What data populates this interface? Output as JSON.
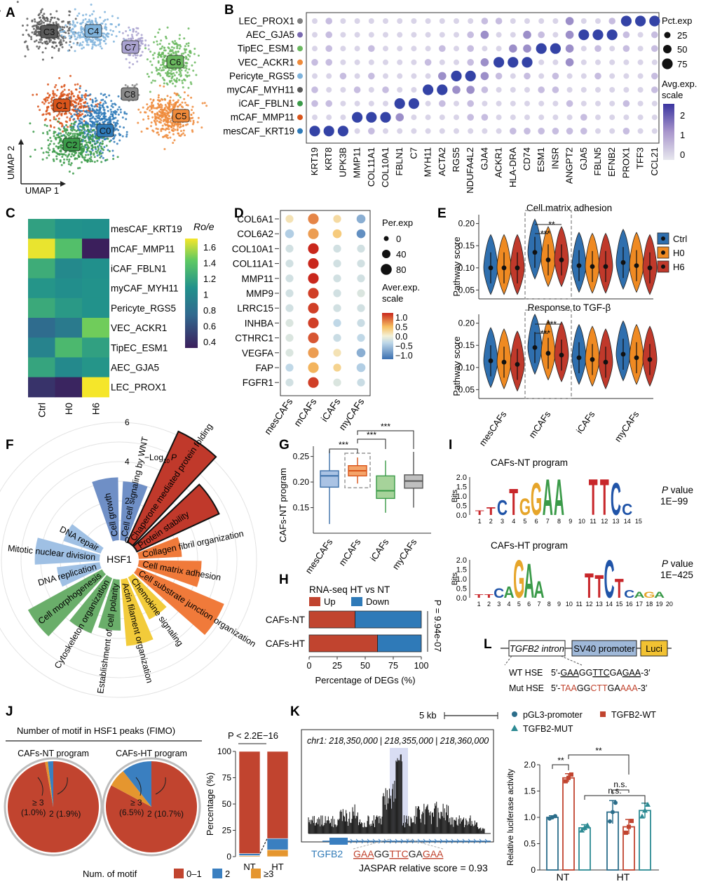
{
  "panels": {
    "A": "A",
    "B": "B",
    "C": "C",
    "D": "D",
    "E": "E",
    "F": "F",
    "G": "G",
    "H": "H",
    "I": "I",
    "J": "J",
    "K": "K",
    "L": "L"
  },
  "panelA": {
    "clusters": [
      {
        "label": "C3",
        "color": "#5a5a5a"
      },
      {
        "label": "C4",
        "color": "#7fb3dc"
      },
      {
        "label": "C7",
        "color": "#a9a2cf"
      },
      {
        "label": "C6",
        "color": "#6ab85f"
      },
      {
        "label": "C1",
        "color": "#d9541a"
      },
      {
        "label": "C8",
        "color": "#8a8a8a"
      },
      {
        "label": "C5",
        "color": "#ef8a3a"
      },
      {
        "label": "C0",
        "color": "#2f7ab8"
      },
      {
        "label": "C2",
        "color": "#3a9a48"
      }
    ],
    "axis_y": "UMAP 2",
    "axis_x": "UMAP 1"
  },
  "panelB": {
    "rows": [
      {
        "name": "LEC_PROX1",
        "color": "#7f7f7f"
      },
      {
        "name": "AEC_GJA5",
        "color": "#7a6ab0"
      },
      {
        "name": "TipEC_ESM1",
        "color": "#6ab85f"
      },
      {
        "name": "VEC_ACKR1",
        "color": "#ef8a3a"
      },
      {
        "name": "Pericyte_RGS5",
        "color": "#7fb3dc"
      },
      {
        "name": "myCAF_MYH11",
        "color": "#5a5a5a"
      },
      {
        "name": "iCAF_FBLN1",
        "color": "#3a9a48"
      },
      {
        "name": "mCAF_MMP11",
        "color": "#d9541a"
      },
      {
        "name": "mesCAF_KRT19",
        "color": "#2f7ab8"
      }
    ],
    "genes": [
      "KRT19",
      "KRT8",
      "UPK3B",
      "MMP11",
      "COL11A1",
      "COL10A1",
      "FBLN1",
      "C7",
      "MYH11",
      "ACTA2",
      "RGS5",
      "NDUFA4L2",
      "GJA4",
      "ACKR1",
      "HLA-DRA",
      "CD74",
      "ESM1",
      "INSR",
      "ANGPT2",
      "GJA5",
      "FBLN5",
      "EFNB2",
      "PROX1",
      "TFF3",
      "CCL21"
    ],
    "legend_pct_title": "Pct.exp",
    "pct_levels": [
      "25",
      "50",
      "75"
    ],
    "legend_avg_title1": "Avg.exp.",
    "legend_avg_title2": "scale",
    "avg_ticks": [
      "2",
      "1",
      "0"
    ]
  },
  "panelC": {
    "rows": [
      "mesCAF_KRT19",
      "mCAF_MMP11",
      "iCAF_FBLN1",
      "myCAF_MYH11",
      "Pericyte_RGS5",
      "VEC_ACKR1",
      "TipEC_ESM1",
      "AEC_GJA5",
      "LEC_PROX1"
    ],
    "cols": [
      "Ctrl",
      "H0",
      "H6"
    ],
    "values": [
      [
        1.12,
        1.03,
        1.02
      ],
      [
        1.72,
        1.32,
        0.3
      ],
      [
        1.2,
        0.95,
        1.02
      ],
      [
        1.05,
        1.0,
        1.03
      ],
      [
        1.18,
        1.08,
        1.03
      ],
      [
        0.7,
        0.82,
        1.43
      ],
      [
        0.9,
        1.28,
        1.12
      ],
      [
        1.15,
        0.95,
        1.05
      ],
      [
        0.4,
        0.33,
        1.75
      ]
    ],
    "legend_title": "Ro/e",
    "ticks": [
      "1.6",
      "1.4",
      "1.2",
      "1",
      "0.8",
      "0.6",
      "0.4"
    ]
  },
  "panelD": {
    "genes": [
      "COL6A1",
      "COL6A2",
      "COL10A1",
      "COL11A1",
      "MMP11",
      "MMP9",
      "LRRC15",
      "INHBA",
      "CTHRC1",
      "VEGFA",
      "FAP",
      "FGFR1"
    ],
    "groups": [
      "mesCAFs",
      "mCAFs",
      "iCAFs",
      "myCAFs"
    ],
    "values": [
      [
        0.3,
        1.0,
        0.4,
        -0.8
      ],
      [
        -0.6,
        0.9,
        0.6,
        -1.0
      ],
      [
        -0.3,
        1.4,
        -0.3,
        -0.3
      ],
      [
        -0.3,
        1.4,
        -0.3,
        -0.3
      ],
      [
        -0.3,
        1.4,
        -0.3,
        -0.3
      ],
      [
        -0.3,
        1.3,
        -0.3,
        -0.2
      ],
      [
        -0.3,
        1.3,
        -0.3,
        -0.3
      ],
      [
        -0.2,
        1.3,
        -0.5,
        -0.4
      ],
      [
        -0.2,
        1.2,
        -0.4,
        -0.5
      ],
      [
        -0.2,
        0.9,
        0.3,
        -0.8
      ],
      [
        -0.5,
        0.8,
        0.5,
        -0.6
      ],
      [
        -0.3,
        1.3,
        -0.2,
        -0.4
      ]
    ],
    "legend_per_title": "Per.exp",
    "per_levels": [
      "0",
      "40",
      "80"
    ],
    "legend_aver_title1": "Aver.exp.",
    "legend_aver_title2": "scale",
    "aver_ticks": [
      "1.0",
      "0.5",
      "0.0",
      "−0.5",
      "−1.0"
    ]
  },
  "panelE": {
    "titles": [
      "Cell matrix adhesion",
      "Response to TGF-β"
    ],
    "ylabel": "Pathway score",
    "yticks": [
      "0.20",
      "0.15",
      "0.10",
      "0.05"
    ],
    "groups": [
      "mesCAFs",
      "mCAFs",
      "iCAFs",
      "myCAFs"
    ],
    "legend": [
      {
        "name": "Ctrl",
        "color": "#2f6fae"
      },
      {
        "name": "H0",
        "color": "#ef8a22"
      },
      {
        "name": "H6",
        "color": "#c0392b"
      }
    ],
    "sig1": "**",
    "sig2": "***",
    "sig3": "***",
    "sig4": "***"
  },
  "panelF": {
    "center": "HSF1",
    "axis_label": "−Log",
    "axis_sub": "10",
    "axis_p": "P",
    "ticks": [
      "6",
      "4",
      "2",
      "0"
    ],
    "bars": [
      {
        "label": "Cell growth",
        "v": 3.2,
        "color": "#6f8fc6"
      },
      {
        "label": "Cell cell signaling by WNT",
        "v": 3.0,
        "color": "#6f8fc6"
      },
      {
        "label": "Chaperone mediated protein folding",
        "v": 6.2,
        "color": "#c0392b"
      },
      {
        "label": "Protein stability",
        "v": 4.6,
        "color": "#c0392b"
      },
      {
        "label": "Collagen fibril organization",
        "v": 2.2,
        "color": "#f07a3a"
      },
      {
        "label": "Cell matrix adhesion",
        "v": 3.2,
        "color": "#f07a3a"
      },
      {
        "label": "Cell substrate junction organization",
        "v": 4.8,
        "color": "#f07a3a"
      },
      {
        "label": "Chemokine signaling",
        "v": 2.4,
        "color": "#f2cb3a"
      },
      {
        "label": "Actin filament organization",
        "v": 3.4,
        "color": "#f2cb3a"
      },
      {
        "label": "Establishment of cell polarity",
        "v": 2.6,
        "color": "#6aae6a"
      },
      {
        "label": "Cytoskeleton organization",
        "v": 3.0,
        "color": "#6aae6a"
      },
      {
        "label": "Cell morphogenesis",
        "v": 4.3,
        "color": "#6aae6a"
      },
      {
        "label": "DNA replication",
        "v": 2.2,
        "color": "#9fc0e4"
      },
      {
        "label": "Mitotic nuclear division",
        "v": 3.3,
        "color": "#9fc0e4"
      },
      {
        "label": "DNA repair",
        "v": 2.0,
        "color": "#9fc0e4"
      }
    ]
  },
  "panelG": {
    "ylabel": "CAFs-NT program",
    "yticks": [
      "0.25",
      "0.20",
      "0.15"
    ],
    "groups": [
      "mesCAFs",
      "mCAFs",
      "iCAFs",
      "myCAFs"
    ],
    "boxes": [
      {
        "min": 0.118,
        "q1": 0.19,
        "med": 0.212,
        "q3": 0.222,
        "max": 0.262,
        "fill": "#aac3e4",
        "stroke": "#3b6ea8"
      },
      {
        "min": 0.197,
        "q1": 0.212,
        "med": 0.222,
        "q3": 0.232,
        "max": 0.248,
        "fill": "#f4a46a",
        "stroke": "#d9541a"
      },
      {
        "min": 0.14,
        "q1": 0.168,
        "med": 0.183,
        "q3": 0.212,
        "max": 0.242,
        "fill": "#a6d39a",
        "stroke": "#3a9a48"
      },
      {
        "min": 0.15,
        "q1": 0.188,
        "med": 0.202,
        "q3": 0.214,
        "max": 0.259,
        "fill": "#bfbfbf",
        "stroke": "#555555"
      }
    ],
    "sig": [
      "***",
      "***",
      "***"
    ]
  },
  "panelH": {
    "title": "RNA-seq HT vs NT",
    "legend": [
      {
        "name": "Up",
        "color": "#c1442f"
      },
      {
        "name": "Down",
        "color": "#2f7ab8"
      }
    ],
    "rows": [
      {
        "name": "CAFs-NT",
        "up": 41
      },
      {
        "name": "CAFs-HT",
        "up": 61
      }
    ],
    "xticks": [
      "0",
      "25",
      "50",
      "75",
      "100"
    ],
    "xlabel": "Percentage of DEGs (%)",
    "pvalue": "P = 9.94e-07"
  },
  "panelI": {
    "logos": [
      {
        "title": "CAFs-NT program",
        "ylabel": "Bits",
        "pvalue_label": "P value",
        "pvalue": "1E−99",
        "positions": [
          "1",
          "2",
          "3",
          "4",
          "5",
          "6",
          "7",
          "8",
          "9",
          "10",
          "11",
          "12",
          "13",
          "14",
          "15"
        ]
      },
      {
        "title": "CAFs-HT program",
        "ylabel": "Bits",
        "pvalue_label": "P value",
        "pvalue": "1E−425",
        "positions": [
          "1",
          "2",
          "3",
          "4",
          "5",
          "6",
          "7",
          "8",
          "9",
          "10",
          "11",
          "12",
          "13",
          "14",
          "15",
          "16",
          "17",
          "18",
          "19",
          "20"
        ]
      }
    ],
    "yticks": [
      "2.0",
      "1.5",
      "1.0",
      "0.5",
      "0.0"
    ]
  },
  "panelJ": {
    "title": "Number of motif in HSF1 peaks (FIMO)",
    "pies": [
      {
        "title": "CAFs-NT program",
        "ge3": "≥ 3",
        "ge3_pct": "(1.0%)",
        "two": "2 (1.9%)",
        "fracs": [
          0.971,
          0.019,
          0.01
        ]
      },
      {
        "title": "CAFs-HT program",
        "ge3": "≥ 3",
        "ge3_pct": "(6.5%)",
        "two": "2 (10.7%)",
        "fracs": [
          0.828,
          0.107,
          0.065
        ]
      }
    ],
    "bar_p": "P < 2.2E−16",
    "ylabel": "Percentage (%)",
    "yticks": [
      "100",
      "75",
      "50",
      "25",
      "0"
    ],
    "bars": [
      {
        "name": "NT",
        "fracs": [
          0.971,
          0.019,
          0.01
        ]
      },
      {
        "name": "HT",
        "fracs": [
          0.828,
          0.107,
          0.065
        ]
      }
    ],
    "legend_title": "Num. of motif",
    "legend": [
      {
        "name": "0–1",
        "color": "#c1442f"
      },
      {
        "name": "2",
        "color": "#3a7fc0"
      },
      {
        "name": "≥3",
        "color": "#e5962f"
      }
    ],
    "colors": [
      "#c1442f",
      "#3a7fc0",
      "#e5962f"
    ]
  },
  "panelK": {
    "scale": "5 kb",
    "coord1": "chr1: 218,350,000",
    "coord2": "218,355,000",
    "coord3": "218,360,000",
    "gene": "TGFB2",
    "motif_a": "GAA",
    "motif_b": "GG",
    "motif_c": "TTC",
    "motif_d": "GA",
    "motif_e": "GAA",
    "score": "JASPAR relative score = 0.93"
  },
  "panelL": {
    "construct": [
      "TGFB2 intron",
      "SV40 promoter",
      "Luci"
    ],
    "wt_label": "WT HSE",
    "wt_seq": [
      "5′-",
      "GAA",
      "GG",
      "TTC",
      "GA",
      "GAA",
      "-3′"
    ],
    "mut_label": "Mut HSE",
    "mut_seq": [
      "5′-",
      "TAA",
      "GG",
      "CTT",
      "GA",
      "AAA",
      "-3′"
    ],
    "legend": [
      {
        "name": "pGL3-promoter",
        "color": "#2b6d8a",
        "shape": "circle"
      },
      {
        "name": "TGFB2-WT",
        "color": "#c1442f",
        "shape": "square"
      },
      {
        "name": "TGFB2-MUT",
        "color": "#2c8a93",
        "shape": "triangle"
      }
    ],
    "ylabel": "Relative luciferase activity",
    "yticks": [
      "2.0",
      "1.5",
      "1.0",
      "0.5",
      "0"
    ],
    "groups": [
      "NT",
      "HT"
    ],
    "bars": [
      {
        "v": 1.0,
        "err": 0.03,
        "color": "#2b6d8a"
      },
      {
        "v": 1.75,
        "err": 0.08,
        "color": "#c1442f"
      },
      {
        "v": 0.8,
        "err": 0.06,
        "color": "#2c8a93"
      },
      {
        "v": 1.1,
        "err": 0.22,
        "color": "#2b6d8a"
      },
      {
        "v": 0.82,
        "err": 0.14,
        "color": "#c1442f"
      },
      {
        "v": 1.13,
        "err": 0.14,
        "color": "#2c8a93"
      }
    ],
    "sig": [
      "**",
      "**",
      "n.s.",
      "n.s."
    ]
  }
}
